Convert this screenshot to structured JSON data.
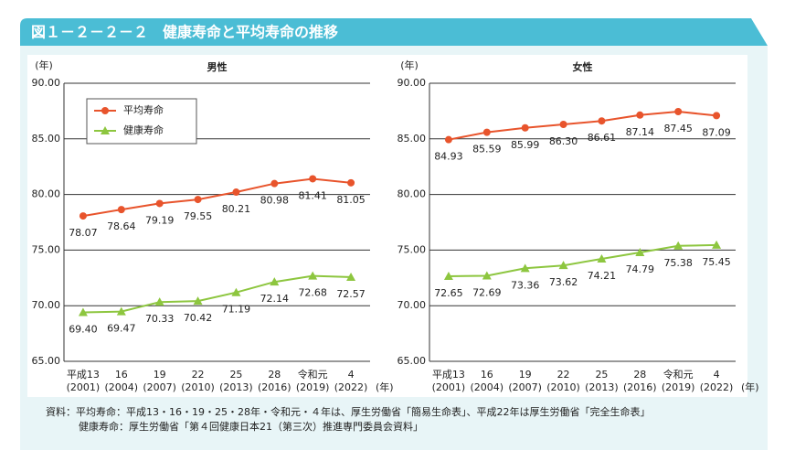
{
  "header": {
    "title": "図１－２－２－２　健康寿命と平均寿命の推移"
  },
  "chart_data": [
    {
      "type": "line",
      "title": "男性",
      "ylabel": "(年)",
      "xlabel": "(年)",
      "categories": [
        "平成13",
        "16",
        "19",
        "22",
        "25",
        "28",
        "令和元",
        "4"
      ],
      "category_years": [
        "(2001)",
        "(2004)",
        "(2007)",
        "(2010)",
        "(2013)",
        "(2016)",
        "(2019)",
        "(2022)"
      ],
      "ylim": [
        65,
        90
      ],
      "yticks": [
        {
          "value": 65,
          "label": "65.00"
        },
        {
          "value": 70,
          "label": "70.00"
        },
        {
          "value": 75,
          "label": "75.00"
        },
        {
          "value": 80,
          "label": "80.00"
        },
        {
          "value": 85,
          "label": "85.00"
        },
        {
          "value": 90,
          "label": "90.00"
        }
      ],
      "grid": true,
      "legend": "upper left",
      "series": [
        {
          "name": "平均寿命",
          "color": "#e8542c",
          "marker": "circle",
          "values": [
            78.07,
            78.64,
            79.19,
            79.55,
            80.21,
            80.98,
            81.41,
            81.05
          ],
          "value_labels": [
            "78.07",
            "78.64",
            "79.19",
            "79.55",
            "80.21",
            "80.98",
            "81.41",
            "81.05"
          ]
        },
        {
          "name": "健康寿命",
          "color": "#8dc63f",
          "marker": "triangle",
          "values": [
            69.4,
            69.47,
            70.33,
            70.42,
            71.19,
            72.14,
            72.68,
            72.57
          ],
          "value_labels": [
            "69.40",
            "69.47",
            "70.33",
            "70.42",
            "71.19",
            "72.14",
            "72.68",
            "72.57"
          ]
        }
      ]
    },
    {
      "type": "line",
      "title": "女性",
      "ylabel": "(年)",
      "xlabel": "(年)",
      "categories": [
        "平成13",
        "16",
        "19",
        "22",
        "25",
        "28",
        "令和元",
        "4"
      ],
      "category_years": [
        "(2001)",
        "(2004)",
        "(2007)",
        "(2010)",
        "(2013)",
        "(2016)",
        "(2019)",
        "(2022)"
      ],
      "ylim": [
        65,
        90
      ],
      "yticks": [
        {
          "value": 65,
          "label": "65.00"
        },
        {
          "value": 70,
          "label": "70.00"
        },
        {
          "value": 75,
          "label": "75.00"
        },
        {
          "value": 80,
          "label": "80.00"
        },
        {
          "value": 85,
          "label": "85.00"
        },
        {
          "value": 90,
          "label": "90.00"
        }
      ],
      "grid": true,
      "series": [
        {
          "color": "#e8542c",
          "marker": "circle",
          "values": [
            84.93,
            85.59,
            85.99,
            86.3,
            86.61,
            87.14,
            87.45,
            87.09
          ],
          "value_labels": [
            "84.93",
            "85.59",
            "85.99",
            "86.30",
            "86.61",
            "87.14",
            "87.45",
            "87.09"
          ]
        },
        {
          "color": "#8dc63f",
          "marker": "triangle",
          "values": [
            72.65,
            72.69,
            73.36,
            73.62,
            74.21,
            74.79,
            75.38,
            75.45
          ],
          "value_labels": [
            "72.65",
            "72.69",
            "73.36",
            "73.62",
            "74.21",
            "74.79",
            "75.38",
            "75.45"
          ]
        }
      ]
    }
  ],
  "source": [
    "資料：平均寿命：平成13・16・19・25・28年・令和元・４年は、厚生労働省「簡易生命表」、平成22年は厚生労働省「完全生命表」",
    "健康寿命：厚生労働省「第４回健康日本21（第三次）推進専門委員会資料」"
  ]
}
